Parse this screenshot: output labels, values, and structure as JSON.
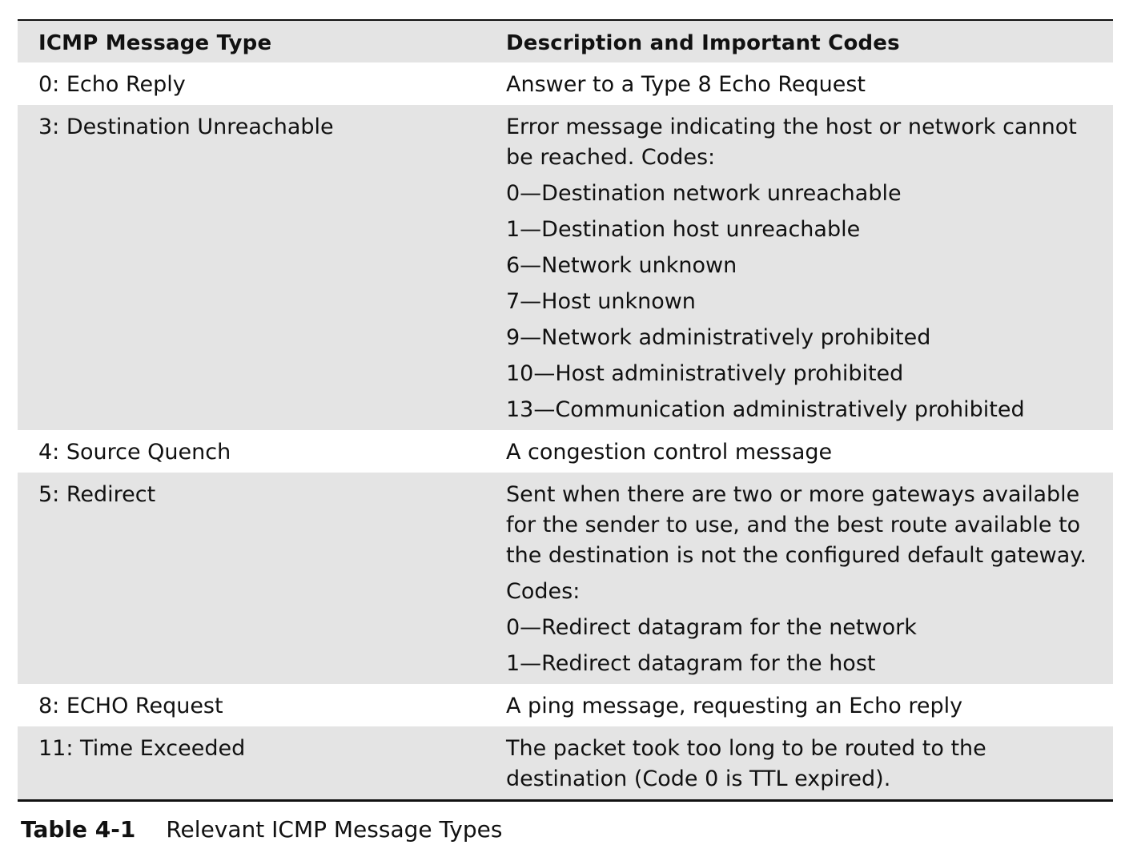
{
  "table": {
    "headers": {
      "type": "ICMP Message Type",
      "description": "Description and Important Codes"
    },
    "rows": [
      {
        "type": "0: Echo Reply",
        "description": [
          "Answer to a Type 8 Echo Request"
        ]
      },
      {
        "type": "3: Destination Unreachable",
        "description": [
          "Error message indicating the host or network cannot be reached. Codes:",
          "0—Destination network unreachable",
          "1—Destination host unreachable",
          "6—Network unknown",
          "7—Host unknown",
          "9—Network administratively prohibited",
          "10—Host administratively prohibited",
          "13—Communication administratively prohibited"
        ]
      },
      {
        "type": "4: Source Quench",
        "description": [
          "A congestion control message"
        ]
      },
      {
        "type": "5: Redirect",
        "description": [
          "Sent when there are two or more gateways available for the sender to use, and the best route available to the destination is not the configured default gateway.",
          "Codes:",
          "0—Redirect datagram for the network",
          "1—Redirect datagram for the host"
        ]
      },
      {
        "type": "8: ECHO Request",
        "description": [
          "A ping message, requesting an Echo reply"
        ]
      },
      {
        "type": "11: Time Exceeded",
        "description": [
          "The packet took too long to be routed to the destination (Code 0 is TTL expired)."
        ]
      }
    ]
  },
  "caption": {
    "label": "Table 4-1",
    "text": "Relevant ICMP Message Types"
  },
  "colors": {
    "shaded_row": "#e4e4e4",
    "rule": "#111111"
  }
}
